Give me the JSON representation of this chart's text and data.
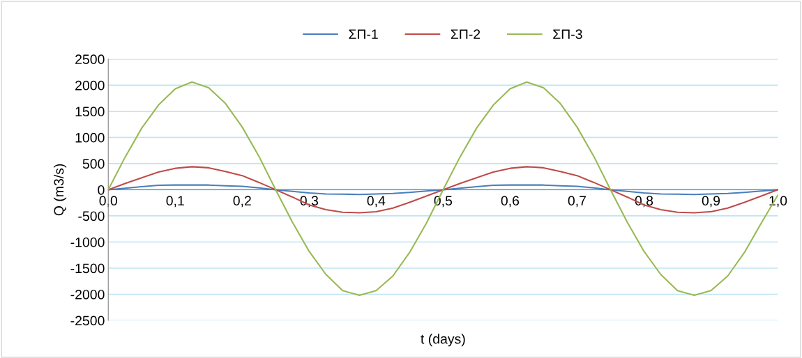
{
  "chart_data": {
    "type": "line",
    "xlabel": "t (days)",
    "ylabel": "Q (m3/s)",
    "x": [
      0,
      0.025,
      0.05,
      0.075,
      0.1,
      0.125,
      0.15,
      0.175,
      0.2,
      0.225,
      0.25,
      0.275,
      0.3,
      0.325,
      0.35,
      0.375,
      0.4,
      0.425,
      0.45,
      0.475,
      0.5,
      0.525,
      0.55,
      0.575,
      0.6,
      0.625,
      0.65,
      0.675,
      0.7,
      0.725,
      0.75,
      0.775,
      0.8,
      0.825,
      0.85,
      0.875,
      0.9,
      0.925,
      0.95,
      0.975,
      1.0
    ],
    "series": [
      {
        "name": "ΣΠ-1",
        "color": "#4a7ebb",
        "values": [
          0,
          30,
          60,
          85,
          90,
          90,
          90,
          75,
          65,
          35,
          0,
          -30,
          -60,
          -80,
          -85,
          -90,
          -80,
          -70,
          -50,
          -25,
          0,
          30,
          60,
          85,
          90,
          90,
          90,
          75,
          65,
          35,
          0,
          -30,
          -60,
          -80,
          -85,
          -90,
          -80,
          -70,
          -50,
          -25,
          0
        ]
      },
      {
        "name": "ΣΠ-2",
        "color": "#be4b48",
        "values": [
          0,
          120,
          230,
          340,
          410,
          440,
          420,
          350,
          270,
          140,
          0,
          -140,
          -290,
          -380,
          -430,
          -440,
          -420,
          -350,
          -240,
          -120,
          0,
          120,
          230,
          340,
          410,
          440,
          420,
          350,
          270,
          140,
          0,
          -140,
          -290,
          -380,
          -430,
          -440,
          -420,
          -350,
          -240,
          -120,
          0
        ]
      },
      {
        "name": "ΣΠ-3",
        "color": "#98b954",
        "values": [
          0,
          620,
          1180,
          1620,
          1930,
          2060,
          1950,
          1650,
          1200,
          640,
          0,
          -620,
          -1180,
          -1620,
          -1930,
          -2020,
          -1930,
          -1650,
          -1200,
          -640,
          0,
          620,
          1180,
          1620,
          1930,
          2060,
          1950,
          1650,
          1200,
          640,
          0,
          -620,
          -1180,
          -1620,
          -1930,
          -2020,
          -1930,
          -1650,
          -1200,
          -640,
          -100
        ]
      }
    ],
    "xlim": [
      0,
      1.0
    ],
    "xticks": [
      {
        "value": 0,
        "label": "0,0"
      },
      {
        "value": 0.1,
        "label": "0,1"
      },
      {
        "value": 0.2,
        "label": "0,2"
      },
      {
        "value": 0.3,
        "label": "0,3"
      },
      {
        "value": 0.4,
        "label": "0,4"
      },
      {
        "value": 0.5,
        "label": "0,5"
      },
      {
        "value": 0.6,
        "label": "0,6"
      },
      {
        "value": 0.7,
        "label": "0,7"
      },
      {
        "value": 0.8,
        "label": "0,8"
      },
      {
        "value": 0.9,
        "label": "0,9"
      },
      {
        "value": 1.0,
        "label": "1,0"
      }
    ],
    "ylim": [
      -2500,
      2500
    ],
    "yticks": [
      -2500,
      -2000,
      -1500,
      -1000,
      -500,
      0,
      500,
      1000,
      1500,
      2000,
      2500
    ],
    "grid": "y",
    "legend": "top",
    "marker": "none",
    "line_style": "solid"
  }
}
